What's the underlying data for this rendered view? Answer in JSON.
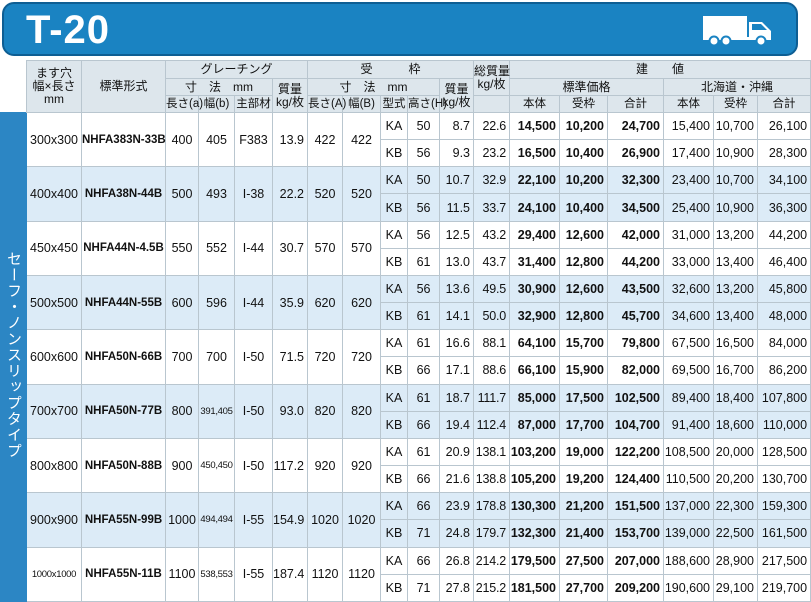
{
  "banner": {
    "title": "T-20",
    "icon": "truck-icon",
    "color": "#1a83c2"
  },
  "side_label": "セーフ・ノンスリップタイプ",
  "header": {
    "size_col": [
      "ます穴",
      "幅×長さ",
      "mm"
    ],
    "model_col": "標準形式",
    "grating": "グレーチング",
    "grating_dim": "寸　法　mm",
    "grating_weight": [
      "質量",
      "kg/枚"
    ],
    "grating_len": "長さ(a)",
    "grating_width": "幅(b)",
    "grating_main": "主部材",
    "frame": "受　　　枠",
    "frame_dim": "寸　法　mm",
    "frame_weight": [
      "質量",
      "kg/枚"
    ],
    "frame_len": "長さ(A)",
    "frame_width": "幅(B)",
    "frame_type": "型式",
    "frame_height": "高さ(H)",
    "total_weight": [
      "総質量",
      "kg/枚"
    ],
    "price": "建　　値",
    "std_price": "標準価格",
    "hokkaido_price": "北海道・沖縄",
    "body": "本体",
    "frame_price": "受枠",
    "sum": "合計"
  },
  "rows": [
    {
      "size": "300x300",
      "model": "NHFA383N-33B",
      "a": "400",
      "b": "405",
      "main": "F383",
      "gw": "13.9",
      "A": "422",
      "B": "422",
      "sub": [
        {
          "type": "KA",
          "h": "50",
          "fw": "8.7",
          "tw": "22.6",
          "p1": "14,500",
          "p2": "10,200",
          "p3": "24,700",
          "h1": "15,400",
          "h2": "10,700",
          "h3": "26,100"
        },
        {
          "type": "KB",
          "h": "56",
          "fw": "9.3",
          "tw": "23.2",
          "p1": "16,500",
          "p2": "10,400",
          "p3": "26,900",
          "h1": "17,400",
          "h2": "10,900",
          "h3": "28,300"
        }
      ]
    },
    {
      "size": "400x400",
      "model": "NHFA38N-44B",
      "a": "500",
      "b": "493",
      "main": "I-38",
      "gw": "22.2",
      "A": "520",
      "B": "520",
      "sub": [
        {
          "type": "KA",
          "h": "50",
          "fw": "10.7",
          "tw": "32.9",
          "p1": "22,100",
          "p2": "10,200",
          "p3": "32,300",
          "h1": "23,400",
          "h2": "10,700",
          "h3": "34,100"
        },
        {
          "type": "KB",
          "h": "56",
          "fw": "11.5",
          "tw": "33.7",
          "p1": "24,100",
          "p2": "10,400",
          "p3": "34,500",
          "h1": "25,400",
          "h2": "10,900",
          "h3": "36,300"
        }
      ]
    },
    {
      "size": "450x450",
      "model": "NHFA44N-4.5B",
      "a": "550",
      "b": "552",
      "main": "I-44",
      "gw": "30.7",
      "A": "570",
      "B": "570",
      "sub": [
        {
          "type": "KA",
          "h": "56",
          "fw": "12.5",
          "tw": "43.2",
          "p1": "29,400",
          "p2": "12,600",
          "p3": "42,000",
          "h1": "31,000",
          "h2": "13,200",
          "h3": "44,200"
        },
        {
          "type": "KB",
          "h": "61",
          "fw": "13.0",
          "tw": "43.7",
          "p1": "31,400",
          "p2": "12,800",
          "p3": "44,200",
          "h1": "33,000",
          "h2": "13,400",
          "h3": "46,400"
        }
      ]
    },
    {
      "size": "500x500",
      "model": "NHFA44N-55B",
      "a": "600",
      "b": "596",
      "main": "I-44",
      "gw": "35.9",
      "A": "620",
      "B": "620",
      "sub": [
        {
          "type": "KA",
          "h": "56",
          "fw": "13.6",
          "tw": "49.5",
          "p1": "30,900",
          "p2": "12,600",
          "p3": "43,500",
          "h1": "32,600",
          "h2": "13,200",
          "h3": "45,800"
        },
        {
          "type": "KB",
          "h": "61",
          "fw": "14.1",
          "tw": "50.0",
          "p1": "32,900",
          "p2": "12,800",
          "p3": "45,700",
          "h1": "34,600",
          "h2": "13,400",
          "h3": "48,000"
        }
      ]
    },
    {
      "size": "600x600",
      "model": "NHFA50N-66B",
      "a": "700",
      "b": "700",
      "main": "I-50",
      "gw": "71.5",
      "A": "720",
      "B": "720",
      "sub": [
        {
          "type": "KA",
          "h": "61",
          "fw": "16.6",
          "tw": "88.1",
          "p1": "64,100",
          "p2": "15,700",
          "p3": "79,800",
          "h1": "67,500",
          "h2": "16,500",
          "h3": "84,000"
        },
        {
          "type": "KB",
          "h": "66",
          "fw": "17.1",
          "tw": "88.6",
          "p1": "66,100",
          "p2": "15,900",
          "p3": "82,000",
          "h1": "69,500",
          "h2": "16,700",
          "h3": "86,200"
        }
      ]
    },
    {
      "size": "700x700",
      "model": "NHFA50N-77B",
      "a": "800",
      "b": "391,405",
      "main": "I-50",
      "gw": "93.0",
      "A": "820",
      "B": "820",
      "sub": [
        {
          "type": "KA",
          "h": "61",
          "fw": "18.7",
          "tw": "111.7",
          "p1": "85,000",
          "p2": "17,500",
          "p3": "102,500",
          "h1": "89,400",
          "h2": "18,400",
          "h3": "107,800"
        },
        {
          "type": "KB",
          "h": "66",
          "fw": "19.4",
          "tw": "112.4",
          "p1": "87,000",
          "p2": "17,700",
          "p3": "104,700",
          "h1": "91,400",
          "h2": "18,600",
          "h3": "110,000"
        }
      ]
    },
    {
      "size": "800x800",
      "model": "NHFA50N-88B",
      "a": "900",
      "b": "450,450",
      "main": "I-50",
      "gw": "117.2",
      "A": "920",
      "B": "920",
      "sub": [
        {
          "type": "KA",
          "h": "61",
          "fw": "20.9",
          "tw": "138.1",
          "p1": "103,200",
          "p2": "19,000",
          "p3": "122,200",
          "h1": "108,500",
          "h2": "20,000",
          "h3": "128,500"
        },
        {
          "type": "KB",
          "h": "66",
          "fw": "21.6",
          "tw": "138.8",
          "p1": "105,200",
          "p2": "19,200",
          "p3": "124,400",
          "h1": "110,500",
          "h2": "20,200",
          "h3": "130,700"
        }
      ]
    },
    {
      "size": "900x900",
      "model": "NHFA55N-99B",
      "a": "1000",
      "b": "494,494",
      "main": "I-55",
      "gw": "154.9",
      "A": "1020",
      "B": "1020",
      "sub": [
        {
          "type": "KA",
          "h": "66",
          "fw": "23.9",
          "tw": "178.8",
          "p1": "130,300",
          "p2": "21,200",
          "p3": "151,500",
          "h1": "137,000",
          "h2": "22,300",
          "h3": "159,300"
        },
        {
          "type": "KB",
          "h": "71",
          "fw": "24.8",
          "tw": "179.7",
          "p1": "132,300",
          "p2": "21,400",
          "p3": "153,700",
          "h1": "139,000",
          "h2": "22,500",
          "h3": "161,500"
        }
      ]
    },
    {
      "size": "1000x1000",
      "model": "NHFA55N-11B",
      "a": "1100",
      "b": "538,553",
      "main": "I-55",
      "gw": "187.4",
      "A": "1120",
      "B": "1120",
      "sub": [
        {
          "type": "KA",
          "h": "66",
          "fw": "26.8",
          "tw": "214.2",
          "p1": "179,500",
          "p2": "27,500",
          "p3": "207,000",
          "h1": "188,600",
          "h2": "28,900",
          "h3": "217,500"
        },
        {
          "type": "KB",
          "h": "71",
          "fw": "27.8",
          "tw": "215.2",
          "p1": "181,500",
          "p2": "27,700",
          "p3": "209,200",
          "h1": "190,600",
          "h2": "29,100",
          "h3": "219,700"
        }
      ]
    }
  ]
}
